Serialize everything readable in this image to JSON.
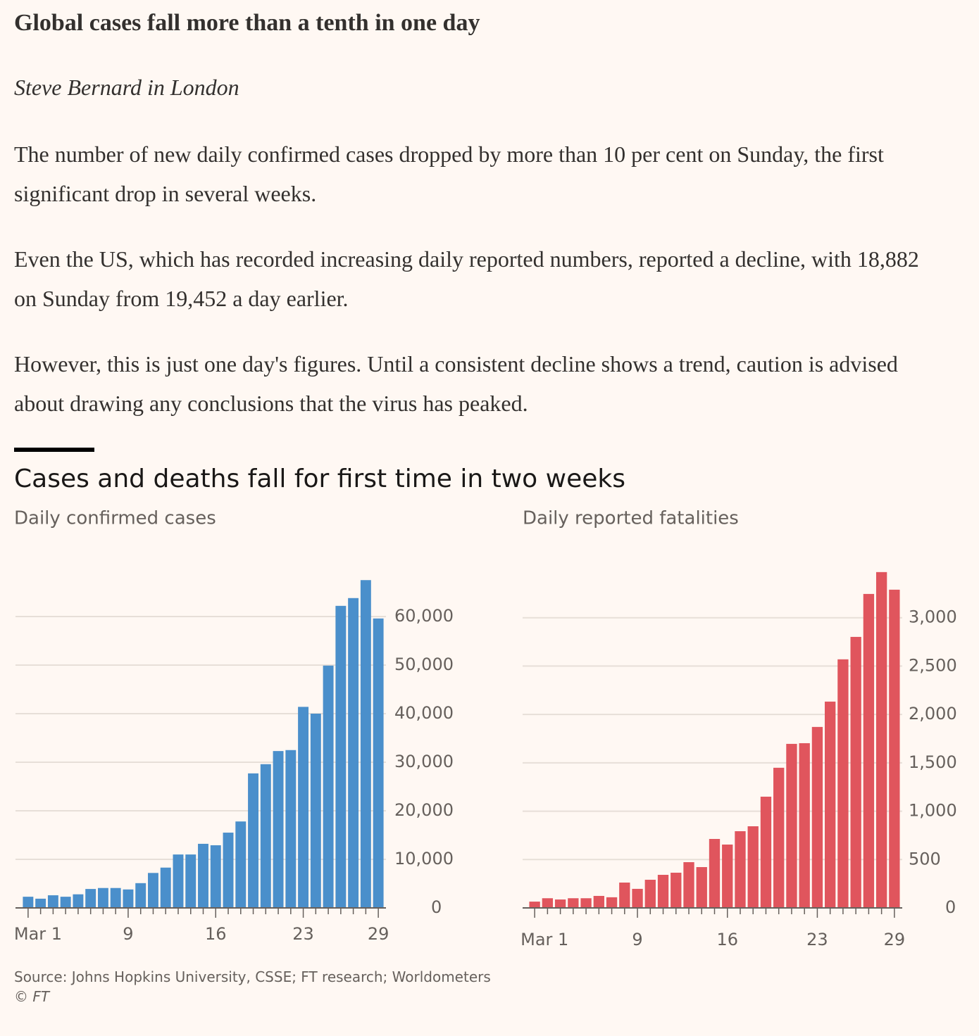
{
  "article": {
    "headline": "Global cases fall more than a tenth in one day",
    "byline": "Steve Bernard in London",
    "paragraphs": [
      "The number of new daily confirmed cases dropped by more than 10 per cent on Sunday, the first significant drop in several weeks.",
      "Even the US, which has recorded increasing daily reported numbers, reported a decline, with 18,882 on Sunday from 19,452 a day earlier.",
      "However, this is just one day's figures. Until a consistent decline shows a trend, caution is advised about drawing any conclusions that the virus has peaked."
    ]
  },
  "figure": {
    "title": "Cases and deaths fall for first time in two weeks",
    "source": "Source: Johns Hopkins University, CSSE; FT research; Worldometers",
    "credit": "© FT"
  },
  "chart_data": [
    {
      "type": "bar",
      "subtitle": "Daily confirmed cases",
      "color": "#4a8fcb",
      "grid": true,
      "categories": [
        "Mar 1",
        null,
        null,
        null,
        null,
        null,
        null,
        null,
        "9",
        null,
        null,
        null,
        null,
        null,
        null,
        "16",
        null,
        null,
        null,
        null,
        null,
        null,
        "23",
        null,
        null,
        null,
        null,
        null,
        "29"
      ],
      "values": [
        2300,
        1900,
        2600,
        2300,
        2800,
        3900,
        4100,
        4100,
        3800,
        5100,
        7200,
        8300,
        11000,
        11000,
        13200,
        12900,
        15500,
        17800,
        27700,
        29600,
        32300,
        32500,
        41400,
        40000,
        49900,
        62200,
        63800,
        67500,
        59600
      ],
      "ylim": [
        0,
        70000
      ],
      "yticks": [
        0,
        {
          "value": 10000,
          "label": "10,000"
        },
        {
          "value": 20000,
          "label": "20,000"
        },
        {
          "value": 30000,
          "label": "30,000"
        },
        {
          "value": 40000,
          "label": "40,000"
        },
        {
          "value": 50000,
          "label": "50,000"
        },
        {
          "value": 60000,
          "label": "60,000"
        }
      ]
    },
    {
      "type": "bar",
      "subtitle": "Daily reported fatalities",
      "color": "#e0555d",
      "grid": true,
      "categories": [
        "Mar 1",
        null,
        null,
        null,
        null,
        null,
        null,
        null,
        "9",
        null,
        null,
        null,
        null,
        null,
        null,
        "16",
        null,
        null,
        null,
        null,
        null,
        null,
        "23",
        null,
        null,
        null,
        null,
        null,
        "29"
      ],
      "values": [
        65,
        100,
        87,
        100,
        100,
        124,
        110,
        262,
        197,
        291,
        342,
        364,
        473,
        422,
        713,
        655,
        793,
        844,
        1150,
        1449,
        1696,
        1703,
        1871,
        2133,
        2570,
        2802,
        3246,
        3472,
        3290
      ],
      "ylim": [
        0,
        3500
      ],
      "yticks": [
        0,
        500,
        {
          "value": 1000,
          "label": "1,000"
        },
        {
          "value": 1500,
          "label": "1,500"
        },
        {
          "value": 2000,
          "label": "2,000"
        },
        {
          "value": 2500,
          "label": "2,500"
        },
        {
          "value": 3000,
          "label": "3,000"
        }
      ]
    }
  ]
}
